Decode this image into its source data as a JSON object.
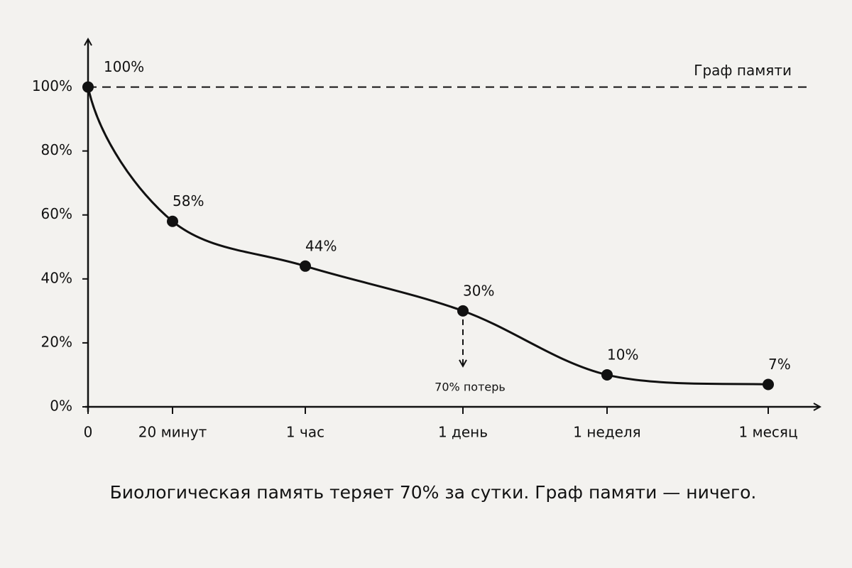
{
  "chart_data": {
    "type": "line",
    "categories": [
      "0",
      "20 минут",
      "1 час",
      "1 день",
      "1 неделя",
      "1 месяц"
    ],
    "values": [
      100,
      58,
      44,
      30,
      10,
      7
    ],
    "value_labels": [
      "100%",
      "58%",
      "44%",
      "30%",
      "10%",
      "7%"
    ],
    "color": "#111111",
    "ylim": [
      0,
      115
    ],
    "yticks": [
      {
        "value": 0,
        "label": "0%"
      },
      {
        "value": 20,
        "label": "20%"
      },
      {
        "value": 40,
        "label": "40%"
      },
      {
        "value": 60,
        "label": "60%"
      },
      {
        "value": 80,
        "label": "80%"
      },
      {
        "value": 100,
        "label": "100%"
      }
    ],
    "reference_line": {
      "label": "Граф памяти",
      "value": 100
    },
    "annotation": "70% потерь",
    "caption": "Биологическая память теряет 70% за сутки. Граф памяти — ничего."
  }
}
